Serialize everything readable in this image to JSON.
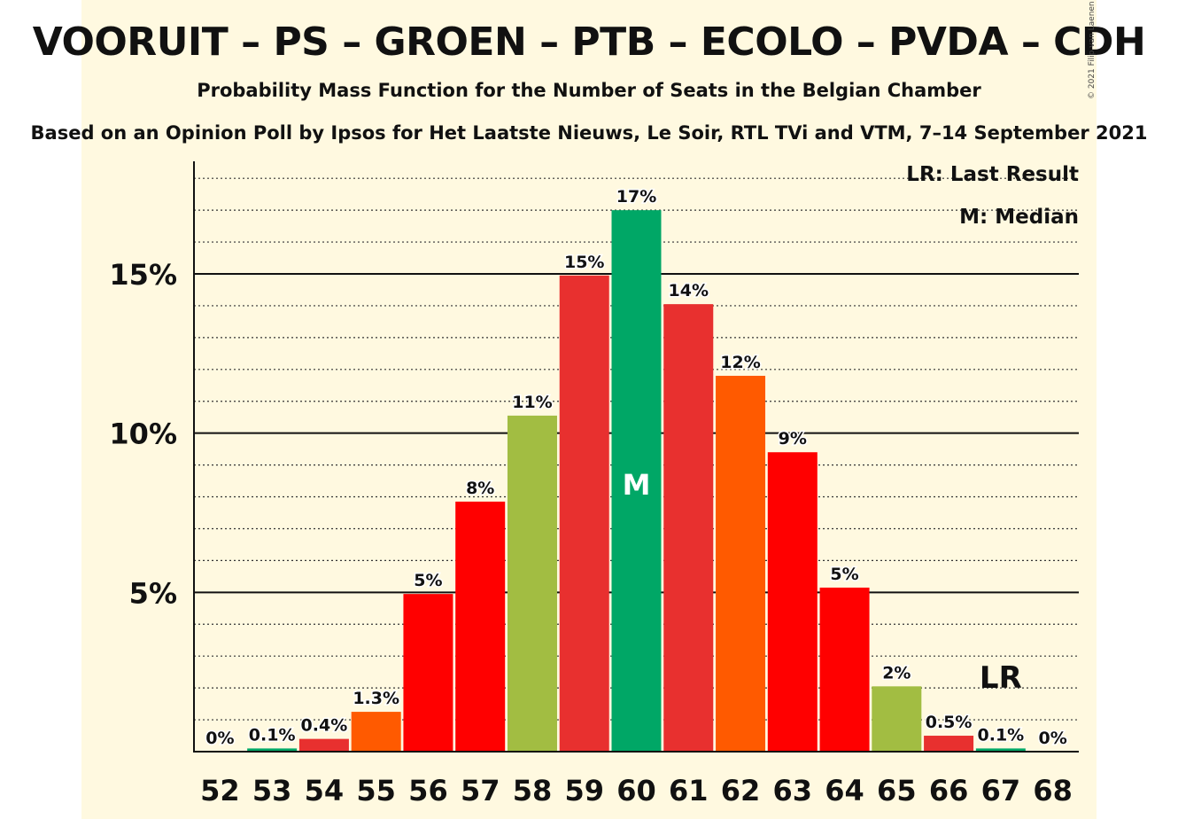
{
  "title": "VOORUIT – PS – GROEN – PTB – ECOLO – PVDA – CDH",
  "subtitle": "Probability Mass Function for the Number of Seats in the Belgian Chamber",
  "source": "Based on an Opinion Poll by Ipsos for Het Laatste Nieuws, Le Soir, RTL TVi and VTM, 7–14 September 2021",
  "copyright": "© 2021 Filip van Laenen",
  "legend": {
    "last_result": "LR: Last Result",
    "median": "M: Median"
  },
  "chart_data": {
    "type": "bar",
    "categories": [
      "52",
      "53",
      "54",
      "55",
      "56",
      "57",
      "58",
      "59",
      "60",
      "61",
      "62",
      "63",
      "64",
      "65",
      "66",
      "67",
      "68"
    ],
    "values": [
      0,
      0.1,
      0.4,
      1.25,
      4.95,
      7.85,
      10.55,
      14.95,
      17.0,
      14.05,
      11.8,
      9.4,
      5.15,
      2.05,
      0.5,
      0.1,
      0
    ],
    "data_labels": [
      "0%",
      "0.1%",
      "0.4%",
      "1.3%",
      "5%",
      "8%",
      "11%",
      "15%",
      "17%",
      "14%",
      "12%",
      "9%",
      "5%",
      "2%",
      "0.5%",
      "0.1%",
      "0%"
    ],
    "colors": [
      "#e8302f",
      "#00a766",
      "#e8302f",
      "#ff5a00",
      "#ff0000",
      "#ff0000",
      "#a2bd42",
      "#e8302f",
      "#00a766",
      "#e8302f",
      "#ff5a00",
      "#ff0000",
      "#ff0000",
      "#a2bd42",
      "#e8302f",
      "#00a766",
      "#e8302f"
    ],
    "ylim": [
      0,
      18.5
    ],
    "yticks": [
      5,
      10,
      15
    ],
    "ytick_labels": [
      "5%",
      "10%",
      "15%"
    ],
    "minor_grid_step": 1,
    "median_category": "60",
    "median_marker": "M",
    "last_result_category": "67",
    "last_result_marker": "LR",
    "xlabel": "",
    "ylabel": "",
    "legend_position": "top-right"
  }
}
